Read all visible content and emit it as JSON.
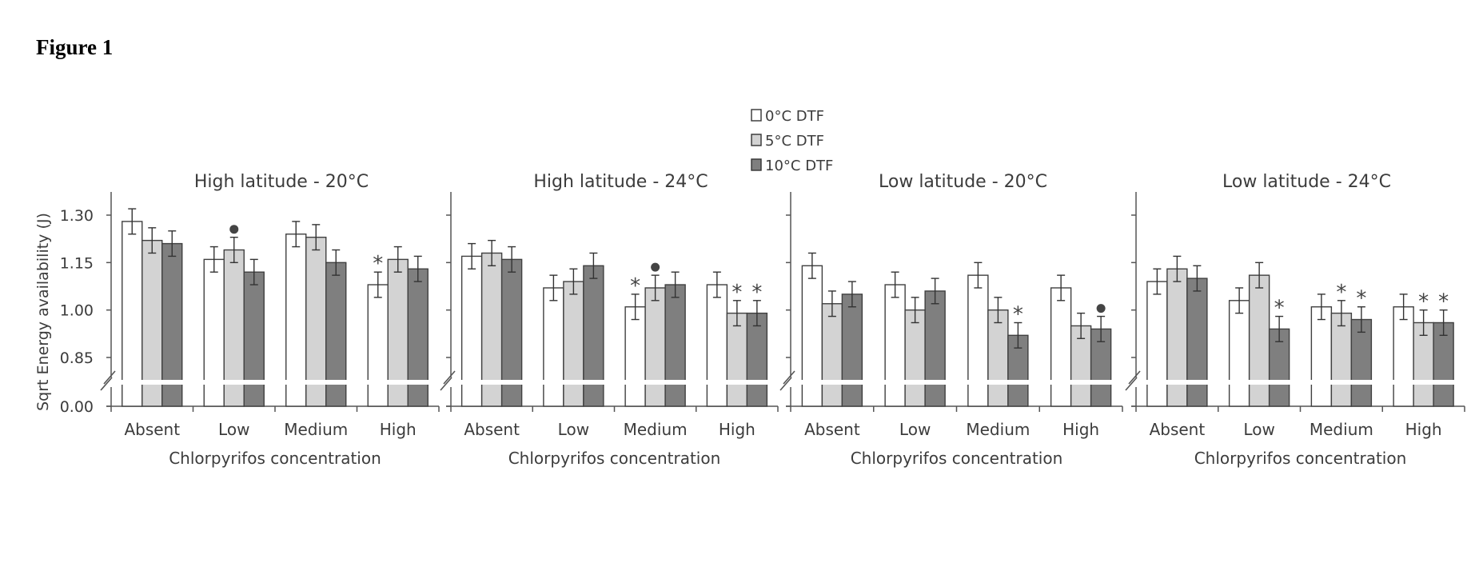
{
  "figure": {
    "title": "Figure 1"
  },
  "chart_data": {
    "type": "bar",
    "ylabel": "Sqrt Energy availability (J)",
    "xlabel": "Chlorpyrifos concentration",
    "categories": [
      "Absent",
      "Low",
      "Medium",
      "High"
    ],
    "ylim": [
      0.75,
      1.35
    ],
    "yticks": [
      "1.30",
      "1.15",
      "1.00",
      "0.85",
      "0.00"
    ],
    "axis_break": true,
    "legend": {
      "placement": "top-center",
      "entries": [
        {
          "label": "0°C DTF",
          "color": "#ffffff"
        },
        {
          "label": "5°C DTF",
          "color": "#d3d3d3"
        },
        {
          "label": "10°C DTF",
          "color": "#7f7f7f"
        }
      ]
    },
    "significance_symbols": {
      "star": "*",
      "dot": "●"
    },
    "panels": [
      {
        "title": "High latitude - 20°C",
        "series": [
          {
            "name": "0°C DTF",
            "values": [
              1.28,
              1.16,
              1.24,
              1.08
            ],
            "errors": [
              0.04,
              0.04,
              0.04,
              0.04
            ],
            "marks": [
              "",
              "",
              "",
              "*"
            ]
          },
          {
            "name": "5°C DTF",
            "values": [
              1.22,
              1.19,
              1.23,
              1.16
            ],
            "errors": [
              0.04,
              0.04,
              0.04,
              0.04
            ],
            "marks": [
              "",
              "●",
              "",
              ""
            ]
          },
          {
            "name": "10°C DTF",
            "values": [
              1.21,
              1.12,
              1.15,
              1.13
            ],
            "errors": [
              0.04,
              0.04,
              0.04,
              0.04
            ],
            "marks": [
              "",
              "",
              "",
              ""
            ]
          }
        ]
      },
      {
        "title": "High latitude - 24°C",
        "series": [
          {
            "name": "0°C DTF",
            "values": [
              1.17,
              1.07,
              1.01,
              1.08
            ],
            "errors": [
              0.04,
              0.04,
              0.04,
              0.04
            ],
            "marks": [
              "",
              "",
              "*",
              ""
            ]
          },
          {
            "name": "5°C DTF",
            "values": [
              1.18,
              1.09,
              1.07,
              0.99
            ],
            "errors": [
              0.04,
              0.04,
              0.04,
              0.04
            ],
            "marks": [
              "",
              "",
              "●",
              "*"
            ]
          },
          {
            "name": "10°C DTF",
            "values": [
              1.16,
              1.14,
              1.08,
              0.99
            ],
            "errors": [
              0.04,
              0.04,
              0.04,
              0.04
            ],
            "marks": [
              "",
              "",
              "",
              "*"
            ]
          }
        ]
      },
      {
        "title": "Low latitude - 20°C",
        "series": [
          {
            "name": "0°C DTF",
            "values": [
              1.14,
              1.08,
              1.11,
              1.07
            ],
            "errors": [
              0.04,
              0.04,
              0.04,
              0.04
            ],
            "marks": [
              "",
              "",
              "",
              ""
            ]
          },
          {
            "name": "5°C DTF",
            "values": [
              1.02,
              1.0,
              1.0,
              0.95
            ],
            "errors": [
              0.04,
              0.04,
              0.04,
              0.04
            ],
            "marks": [
              "",
              "",
              "",
              ""
            ]
          },
          {
            "name": "10°C DTF",
            "values": [
              1.05,
              1.06,
              0.92,
              0.94
            ],
            "errors": [
              0.04,
              0.04,
              0.04,
              0.04
            ],
            "marks": [
              "",
              "",
              "*",
              "●"
            ]
          }
        ]
      },
      {
        "title": "Low latitude - 24°C",
        "series": [
          {
            "name": "0°C DTF",
            "values": [
              1.09,
              1.03,
              1.01,
              1.01
            ],
            "errors": [
              0.04,
              0.04,
              0.04,
              0.04
            ],
            "marks": [
              "",
              "",
              "",
              ""
            ]
          },
          {
            "name": "5°C DTF",
            "values": [
              1.13,
              1.11,
              0.99,
              0.96
            ],
            "errors": [
              0.04,
              0.04,
              0.04,
              0.04
            ],
            "marks": [
              "",
              "",
              "*",
              "*"
            ]
          },
          {
            "name": "10°C DTF",
            "values": [
              1.1,
              0.94,
              0.97,
              0.96
            ],
            "errors": [
              0.04,
              0.04,
              0.04,
              0.04
            ],
            "marks": [
              "",
              "*",
              "*",
              "*"
            ]
          }
        ]
      }
    ]
  }
}
